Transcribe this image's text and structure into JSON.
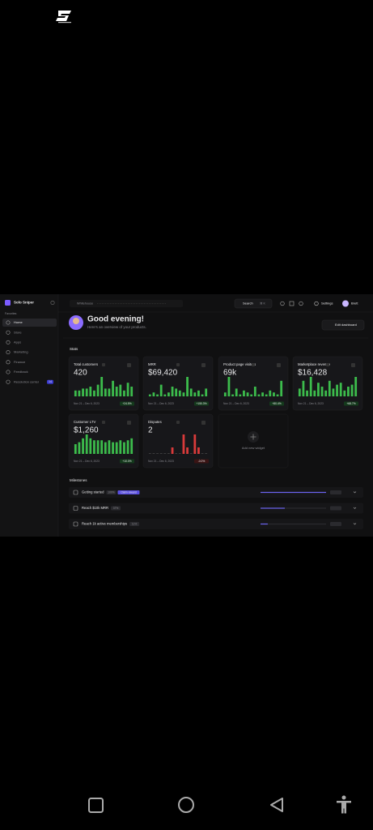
{
  "app": {
    "name": "Solo Sniper"
  },
  "sidebar": {
    "section": "Favorites",
    "items": [
      "Home",
      "Store",
      "Apps",
      "Marketing",
      "Finance",
      "Feedback",
      "Resolution center"
    ],
    "badge": "14"
  },
  "topbar": {
    "workspace": "Whitehouse",
    "search": "Search",
    "shortcut": "⌘ K",
    "settings": "Settings",
    "user": "Brett"
  },
  "greeting": "Good evening!",
  "subtitle": "Here's an overview of your products.",
  "edit_button": "Edit dashboard",
  "stats_heading": "Stats",
  "widgets": [
    {
      "title": "Total customers",
      "value": "420",
      "date": "Nov 21 – Dec 6, 2023",
      "change": "+24.5%",
      "bars": [
        3,
        3,
        4,
        4,
        5,
        3,
        6,
        10,
        4,
        4,
        8,
        5,
        6,
        3,
        7,
        5
      ]
    },
    {
      "title": "MRR",
      "value": "$69,420",
      "date": "Nov 21 – Dec 6, 2023",
      "change": "+150.3%",
      "bars": [
        1,
        2,
        1,
        6,
        1,
        2,
        5,
        4,
        3,
        2,
        10,
        4,
        2,
        3,
        1,
        4
      ]
    },
    {
      "title": "Product page visitors",
      "value": "69k",
      "date": "Nov 21 – Dec 6, 2023",
      "change": "+80.4%",
      "bars": [
        2,
        10,
        1,
        4,
        1,
        3,
        2,
        1,
        5,
        1,
        2,
        1,
        3,
        2,
        1,
        8
      ]
    },
    {
      "title": "Marketplace revenue",
      "value": "$16,428",
      "date": "Nov 21 – Dec 6, 2023",
      "change": "+68.7%",
      "bars": [
        4,
        8,
        3,
        10,
        3,
        7,
        5,
        3,
        8,
        4,
        6,
        7,
        3,
        5,
        6,
        10
      ]
    },
    {
      "title": "Customer LTV",
      "value": "$1,260",
      "date": "Nov 21 – Dec 6, 2023",
      "change": "+10.0%",
      "bars": [
        5,
        6,
        8,
        10,
        8,
        7,
        7,
        7,
        6,
        7,
        6,
        6,
        7,
        6,
        7,
        8
      ]
    },
    {
      "title": "Disputes",
      "value": "2",
      "date": "Nov 21 – Dec 6, 2023",
      "change": "-0.0%",
      "bars": [
        0,
        0,
        0,
        0,
        0,
        0,
        1,
        0,
        0,
        3,
        1,
        0,
        3,
        1,
        0,
        0
      ]
    }
  ],
  "add_widget": "Add new widget",
  "milestones_heading": "Milestones",
  "milestones": [
    {
      "label": "Getting started",
      "progress": 100,
      "progress_label": "100%",
      "action": "Claim reward"
    },
    {
      "label": "Reach $10k MRR",
      "progress": 37,
      "progress_label": "37%"
    },
    {
      "label": "Reach 1k active memberships",
      "progress": 11,
      "progress_label": "11%"
    }
  ]
}
